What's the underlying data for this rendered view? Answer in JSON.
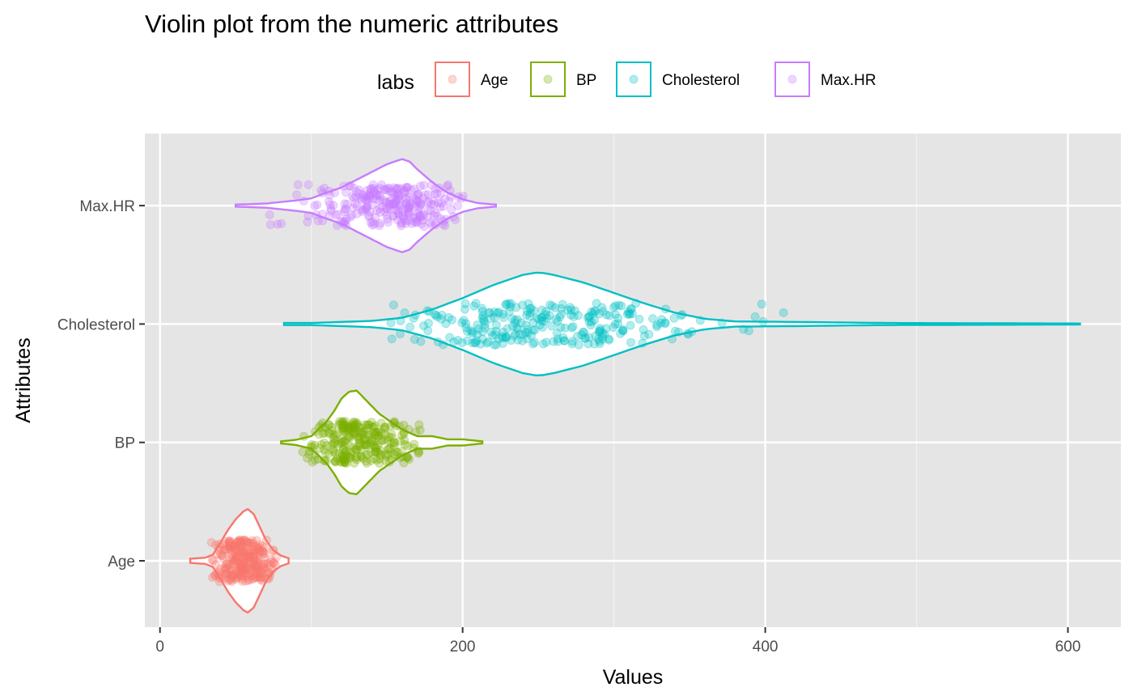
{
  "chart_data": {
    "type": "violin",
    "orientation": "horizontal",
    "title": "Violin plot from the numeric attributes",
    "xlabel": "Values",
    "ylabel": "Attributes",
    "xlim": [
      -10,
      635
    ],
    "x_ticks": [
      0,
      200,
      400,
      600
    ],
    "x_minor_ticks": [
      100,
      300,
      500
    ],
    "categories": [
      "Age",
      "BP",
      "Cholesterol",
      "Max.HR"
    ],
    "grid": true,
    "legend": {
      "title": "labs",
      "position": "top",
      "entries": [
        "Age",
        "BP",
        "Cholesterol",
        "Max.HR"
      ]
    },
    "series": [
      {
        "name": "Age",
        "color": "#f8766d",
        "min": 20,
        "max": 85,
        "bulk": [
          34,
          78
        ],
        "profile": [
          [
            20,
            0.04
          ],
          [
            30,
            0.06
          ],
          [
            35,
            0.12
          ],
          [
            40,
            0.35
          ],
          [
            45,
            0.6
          ],
          [
            50,
            0.8
          ],
          [
            55,
            0.95
          ],
          [
            58,
            1.0
          ],
          [
            62,
            0.9
          ],
          [
            66,
            0.65
          ],
          [
            70,
            0.4
          ],
          [
            75,
            0.2
          ],
          [
            80,
            0.1
          ],
          [
            85,
            0.05
          ]
        ]
      },
      {
        "name": "BP",
        "color": "#7cae00",
        "min": 80,
        "max": 213,
        "bulk": [
          94,
          172
        ],
        "profile": [
          [
            80,
            0.02
          ],
          [
            90,
            0.05
          ],
          [
            100,
            0.12
          ],
          [
            110,
            0.4
          ],
          [
            115,
            0.6
          ],
          [
            120,
            0.85
          ],
          [
            125,
            0.98
          ],
          [
            130,
            1.0
          ],
          [
            135,
            0.85
          ],
          [
            140,
            0.7
          ],
          [
            145,
            0.55
          ],
          [
            150,
            0.45
          ],
          [
            160,
            0.25
          ],
          [
            170,
            0.12
          ],
          [
            180,
            0.12
          ],
          [
            190,
            0.06
          ],
          [
            200,
            0.06
          ],
          [
            213,
            0.02
          ]
        ]
      },
      {
        "name": "Cholesterol",
        "color": "#00bfc4",
        "min": 82,
        "max": 608,
        "bulk": [
          140,
          420
        ],
        "profile": [
          [
            82,
            0.02
          ],
          [
            100,
            0.02
          ],
          [
            140,
            0.06
          ],
          [
            160,
            0.12
          ],
          [
            180,
            0.28
          ],
          [
            200,
            0.5
          ],
          [
            220,
            0.75
          ],
          [
            240,
            0.95
          ],
          [
            250,
            1.0
          ],
          [
            260,
            0.95
          ],
          [
            280,
            0.8
          ],
          [
            300,
            0.6
          ],
          [
            320,
            0.4
          ],
          [
            340,
            0.22
          ],
          [
            360,
            0.1
          ],
          [
            380,
            0.05
          ],
          [
            420,
            0.04
          ],
          [
            480,
            0.02
          ],
          [
            608,
            0.01
          ]
        ]
      },
      {
        "name": "Max.HR",
        "color": "#c77cff",
        "min": 50,
        "max": 222,
        "bulk": [
          70,
          202
        ],
        "profile": [
          [
            50,
            0.02
          ],
          [
            70,
            0.04
          ],
          [
            90,
            0.1
          ],
          [
            100,
            0.14
          ],
          [
            110,
            0.25
          ],
          [
            120,
            0.35
          ],
          [
            130,
            0.5
          ],
          [
            140,
            0.65
          ],
          [
            150,
            0.8
          ],
          [
            155,
            0.85
          ],
          [
            160,
            0.9
          ],
          [
            165,
            0.85
          ],
          [
            170,
            0.7
          ],
          [
            180,
            0.45
          ],
          [
            190,
            0.25
          ],
          [
            200,
            0.12
          ],
          [
            210,
            0.05
          ],
          [
            222,
            0.02
          ]
        ]
      }
    ]
  }
}
